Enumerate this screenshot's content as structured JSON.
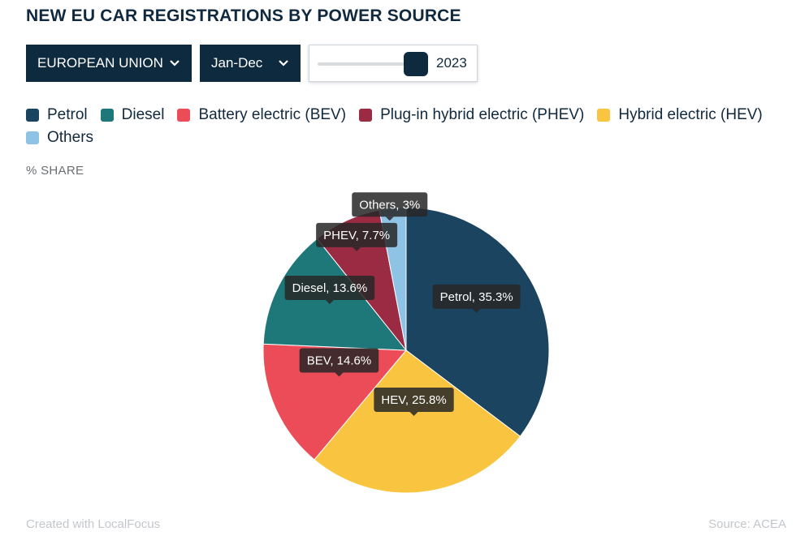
{
  "title": "NEW EU CAR REGISTRATIONS BY POWER SOURCE",
  "controls": {
    "region": "EUROPEAN UNION",
    "period": "Jan-Dec",
    "year": "2023"
  },
  "subheading": "% SHARE",
  "footer": {
    "credit": "Created with LocalFocus",
    "source": "Source:  ACEA"
  },
  "chart_data": {
    "type": "pie",
    "title": "NEW EU CAR REGISTRATIONS BY POWER SOURCE",
    "unit": "% SHARE",
    "legend_position": "top",
    "slices": [
      {
        "name": "Petrol",
        "label": "Petrol, 35.3%",
        "value": 35.3,
        "color": "#1b4460"
      },
      {
        "name": "Hybrid electric (HEV)",
        "label": "HEV, 25.8%",
        "value": 25.8,
        "color": "#f9c43f"
      },
      {
        "name": "Battery electric (BEV)",
        "label": "BEV, 14.6%",
        "value": 14.6,
        "color": "#ec4c58"
      },
      {
        "name": "Diesel",
        "label": "Diesel, 13.6%",
        "value": 13.6,
        "color": "#1e7778"
      },
      {
        "name": "Plug-in hybrid electric (PHEV)",
        "label": "PHEV, 7.7%",
        "value": 7.7,
        "color": "#9b2a43"
      },
      {
        "name": "Others",
        "label": "Others, 3%",
        "value": 3,
        "color": "#8ec3e6"
      }
    ],
    "legend": [
      {
        "name": "Petrol",
        "color": "#1b4460"
      },
      {
        "name": "Diesel",
        "color": "#1e7778"
      },
      {
        "name": "Battery electric (BEV)",
        "color": "#ec4c58"
      },
      {
        "name": "Plug-in hybrid electric (PHEV)",
        "color": "#9b2a43"
      },
      {
        "name": "Hybrid electric (HEV)",
        "color": "#f9c43f"
      },
      {
        "name": "Others",
        "color": "#8ec3e6"
      }
    ]
  }
}
